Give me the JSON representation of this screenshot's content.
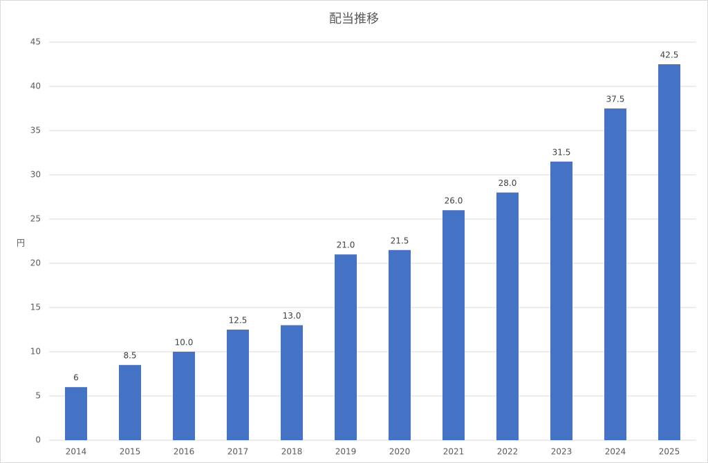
{
  "chart_data": {
    "type": "bar",
    "title": "配当推移",
    "y_label": "円",
    "categories": [
      "2014",
      "2015",
      "2016",
      "2017",
      "2018",
      "2019",
      "2020",
      "2021",
      "2022",
      "2023",
      "2024",
      "2025"
    ],
    "values": [
      6,
      8.5,
      10,
      12.5,
      13,
      21,
      21.5,
      26,
      28,
      31.5,
      37.5,
      42.5
    ],
    "value_labels": [
      "6",
      "8.5",
      "10.0",
      "12.5",
      "13.0",
      "21.0",
      "21.5",
      "26.0",
      "28.0",
      "31.5",
      "37.5",
      "42.5"
    ],
    "color": "#4472c4",
    "ylim": [
      0,
      45
    ],
    "yticks": [
      0,
      5,
      10,
      15,
      20,
      25,
      30,
      35,
      40,
      45
    ],
    "grid": true
  }
}
